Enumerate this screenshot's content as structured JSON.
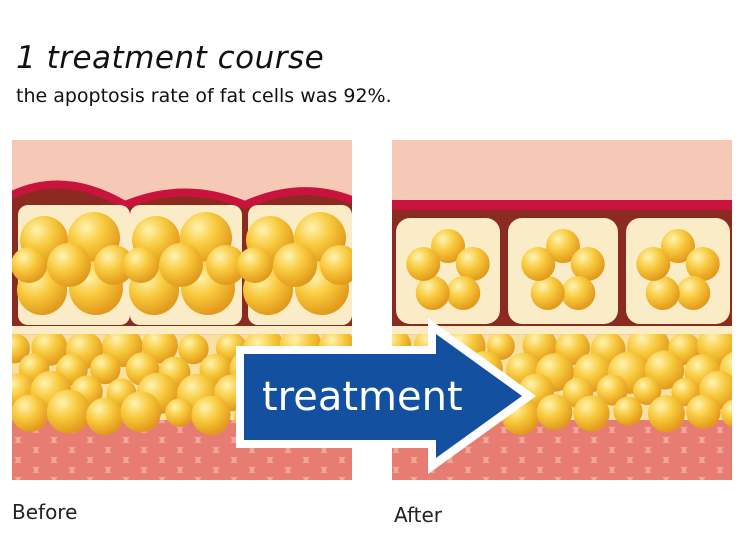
{
  "title": "1 treatment course",
  "subtitle": "the apoptosis rate of fat cells was 92%.",
  "arrow_label": "treatment",
  "before_label": "Before",
  "after_label": "After",
  "colors": {
    "skin": "#f6c9b6",
    "membrane": "#c8143c",
    "fat": "#f6c43a",
    "cell_bg": "#fbecc8",
    "muscle": "#e8857a",
    "arrow": "#1450a0"
  }
}
